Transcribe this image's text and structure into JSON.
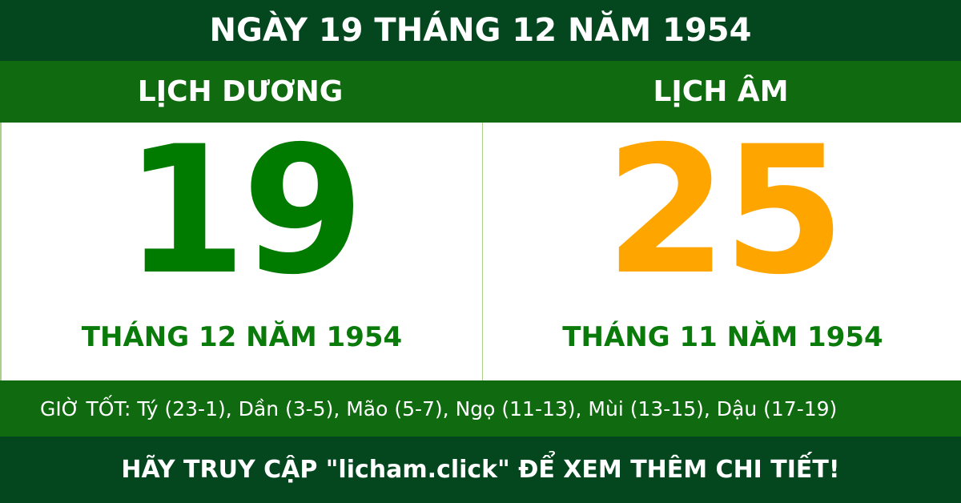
{
  "header": {
    "title": "NGÀY 19 THÁNG 12 NĂM 1954"
  },
  "solar": {
    "label": "LỊCH DƯƠNG",
    "day": "19",
    "month_year": "THÁNG 12 NĂM 1954",
    "color": "#007b00"
  },
  "lunar": {
    "label": "LỊCH ÂM",
    "day": "25",
    "month_year": "THÁNG 11 NĂM 1954",
    "color": "#ffa500"
  },
  "good_hours": "GIỜ TỐT: Tý (23-1), Dần (3-5), Mão (5-7), Ngọ (11-13), Mùi (13-15), Dậu (17-19)",
  "footer": "HÃY TRUY CẬP \"licham.click\" ĐỂ XEM THÊM CHI TIẾT!"
}
